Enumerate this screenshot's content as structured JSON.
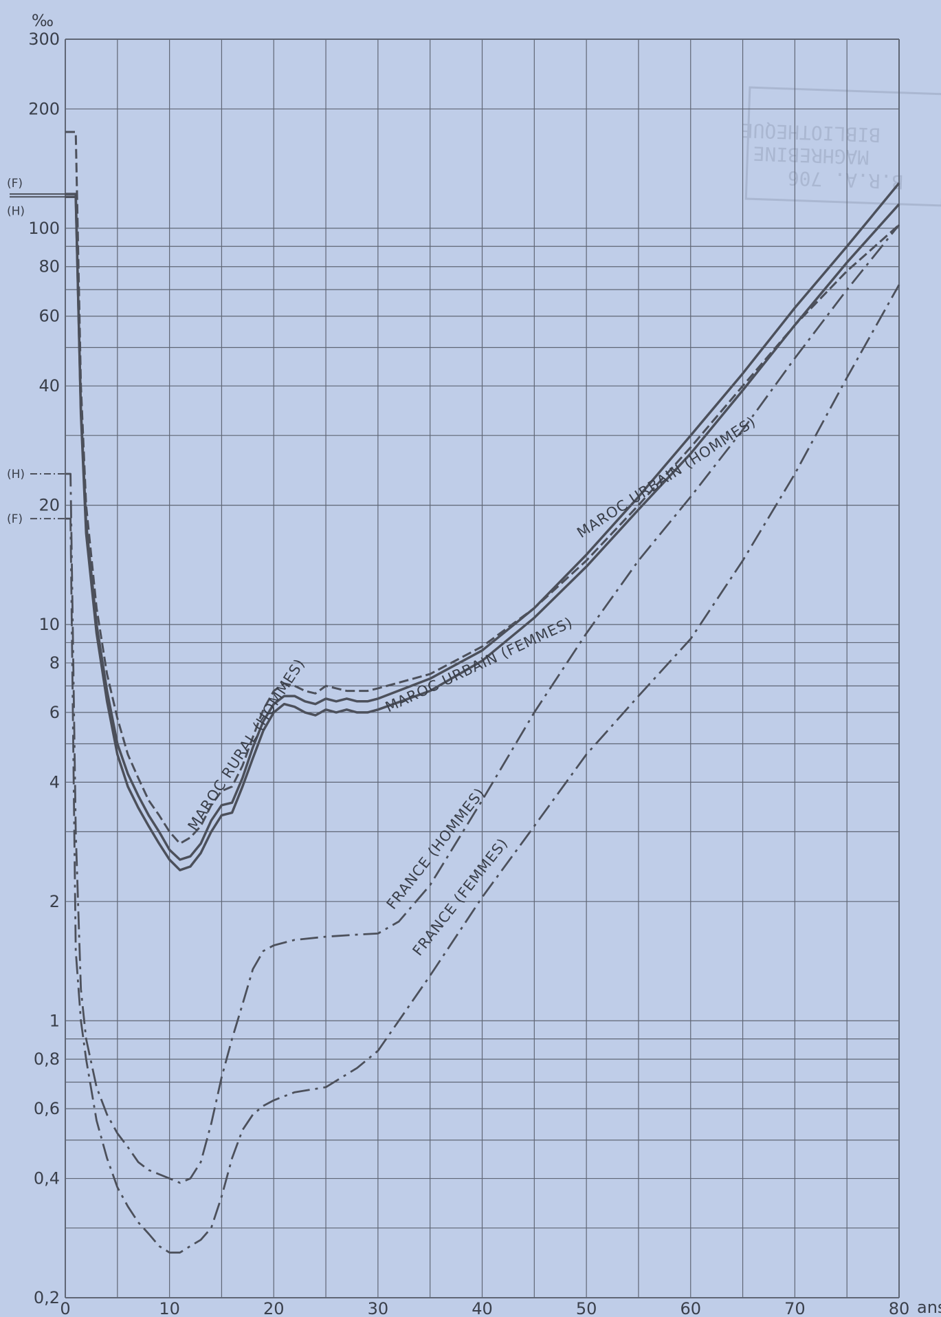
{
  "chart_data": {
    "type": "line",
    "y_unit": "‰",
    "x_unit": "ans",
    "y_scale": "log",
    "xlim": [
      0,
      80
    ],
    "ylim": [
      0.2,
      300
    ],
    "grid": true,
    "x_ticks": [
      0,
      10,
      20,
      30,
      40,
      50,
      60,
      70,
      80
    ],
    "x_tick_labels": [
      "0",
      "10",
      "20",
      "30",
      "40",
      "50",
      "60",
      "70",
      "80"
    ],
    "y_ticks": [
      0.2,
      0.4,
      0.6,
      0.8,
      1,
      2,
      4,
      6,
      8,
      10,
      20,
      40,
      60,
      80,
      100,
      200,
      300
    ],
    "y_tick_labels": [
      "0,2",
      "0,4",
      "0,6",
      "0,8",
      "1",
      "2",
      "4",
      "6",
      "8",
      "10",
      "20",
      "40",
      "60",
      "80",
      "100",
      "200",
      "300"
    ],
    "y_minor_grid": [
      0.3,
      0.5,
      0.7,
      0.9,
      3,
      5,
      7,
      9,
      30,
      50,
      70,
      90
    ],
    "infant_rates": {
      "maroc_hommes_label": "(H)",
      "maroc_hommes_value": 120,
      "maroc_femmes_label": "(F)",
      "maroc_femmes_value": 122,
      "france_hommes_label": "(H)",
      "france_hommes_value": 24,
      "france_femmes_label": "(F)",
      "france_femmes_value": 18.5
    },
    "series": [
      {
        "name": "MAROC RURAL (HOMMES)",
        "style": "dashed",
        "x": [
          0,
          1,
          1.5,
          2,
          3,
          4,
          5,
          6,
          7,
          8,
          9,
          10,
          11,
          12,
          13,
          14,
          15,
          16,
          17,
          18,
          19,
          20,
          21,
          22,
          23,
          24,
          25,
          26,
          27,
          28,
          29,
          30,
          35,
          40,
          45,
          50,
          55,
          60,
          65,
          70,
          75,
          80
        ],
        "values": [
          175,
          175,
          40,
          20,
          11,
          7.5,
          5.8,
          4.7,
          4.1,
          3.6,
          3.3,
          3.0,
          2.8,
          2.9,
          3.1,
          3.5,
          3.8,
          3.9,
          4.4,
          5.2,
          6.1,
          6.8,
          7.1,
          7.0,
          6.8,
          6.7,
          7.0,
          6.9,
          6.8,
          6.8,
          6.8,
          6.9,
          7.5,
          8.8,
          11.0,
          14.5,
          20.0,
          28.0,
          40.0,
          57.0,
          78.0,
          102.0
        ]
      },
      {
        "name": "MAROC URBAIN (HOMMES)",
        "style": "solid",
        "x": [
          0,
          1,
          1.5,
          2,
          3,
          4,
          5,
          6,
          7,
          8,
          9,
          10,
          11,
          12,
          13,
          14,
          15,
          16,
          17,
          18,
          19,
          20,
          21,
          22,
          23,
          24,
          25,
          26,
          27,
          28,
          29,
          30,
          35,
          40,
          45,
          50,
          55,
          60,
          65,
          70,
          75,
          80
        ],
        "values": [
          120,
          120,
          35,
          18,
          10,
          6.8,
          5.0,
          4.2,
          3.7,
          3.3,
          3.0,
          2.7,
          2.55,
          2.6,
          2.8,
          3.2,
          3.5,
          3.55,
          4.1,
          4.9,
          5.7,
          6.3,
          6.6,
          6.6,
          6.4,
          6.3,
          6.5,
          6.4,
          6.5,
          6.4,
          6.4,
          6.5,
          7.3,
          8.6,
          11.0,
          15.0,
          21.0,
          30.0,
          43.0,
          63.0,
          90.0,
          130.0
        ]
      },
      {
        "name": "MAROC URBAIN (FEMMES)",
        "style": "solid",
        "x": [
          0,
          1,
          1.5,
          2,
          3,
          4,
          5,
          6,
          7,
          8,
          9,
          10,
          11,
          12,
          13,
          14,
          15,
          16,
          17,
          18,
          19,
          20,
          21,
          22,
          23,
          24,
          25,
          26,
          27,
          28,
          29,
          30,
          35,
          40,
          45,
          50,
          55,
          60,
          65,
          70,
          75,
          80
        ],
        "values": [
          122,
          122,
          34,
          17,
          9.5,
          6.4,
          4.7,
          3.9,
          3.45,
          3.1,
          2.8,
          2.55,
          2.4,
          2.45,
          2.65,
          3.0,
          3.3,
          3.35,
          3.9,
          4.6,
          5.4,
          6.0,
          6.3,
          6.2,
          6.0,
          5.9,
          6.1,
          6.0,
          6.1,
          6.0,
          6.0,
          6.1,
          6.8,
          8.1,
          10.4,
          14.0,
          19.5,
          27.0,
          39.0,
          57.0,
          82.0,
          115.0
        ]
      },
      {
        "name": "FRANCE (HOMMES)",
        "style": "dash-dot",
        "x": [
          0,
          0.5,
          1,
          1.5,
          2,
          3,
          4,
          5,
          6,
          7,
          8,
          9,
          10,
          11,
          12,
          13,
          14,
          15,
          16,
          17,
          18,
          19,
          20,
          22,
          25,
          28,
          30,
          32,
          35,
          40,
          45,
          50,
          55,
          60,
          65,
          70,
          75,
          80
        ],
        "values": [
          24,
          24,
          3.0,
          1.2,
          0.9,
          0.68,
          0.58,
          0.52,
          0.48,
          0.44,
          0.42,
          0.41,
          0.4,
          0.39,
          0.4,
          0.44,
          0.55,
          0.72,
          0.9,
          1.1,
          1.35,
          1.5,
          1.55,
          1.6,
          1.63,
          1.65,
          1.66,
          1.78,
          2.2,
          3.6,
          6.0,
          9.5,
          14.5,
          21.0,
          31.0,
          47.0,
          70.0,
          102.0
        ]
      },
      {
        "name": "FRANCE (FEMMES)",
        "style": "dash-dot",
        "x": [
          0,
          0.5,
          1,
          1.5,
          2,
          3,
          4,
          5,
          6,
          7,
          8,
          9,
          10,
          11,
          12,
          13,
          14,
          15,
          16,
          17,
          18,
          19,
          20,
          22,
          25,
          28,
          30,
          35,
          40,
          45,
          50,
          55,
          60,
          65,
          70,
          75,
          80
        ],
        "values": [
          18.5,
          18.5,
          1.5,
          1.0,
          0.8,
          0.56,
          0.45,
          0.38,
          0.34,
          0.31,
          0.29,
          0.27,
          0.26,
          0.26,
          0.27,
          0.28,
          0.3,
          0.36,
          0.45,
          0.53,
          0.58,
          0.61,
          0.63,
          0.66,
          0.68,
          0.76,
          0.84,
          1.3,
          2.05,
          3.1,
          4.7,
          6.6,
          9.2,
          14.5,
          24.0,
          42.0,
          72.0
        ]
      }
    ],
    "curve_labels": [
      {
        "text": "MAROC RURAL (HOMMES)",
        "x": 12.5,
        "y": 3.0,
        "angle": -57
      },
      {
        "text": "MAROC URBAIN (HOMMES)",
        "x": 49.5,
        "y": 16.5,
        "angle": -33
      },
      {
        "text": "MAROC URBAIN (FEMMES)",
        "x": 31,
        "y": 6.0,
        "angle": -25
      },
      {
        "text": "FRANCE (HOMMES)",
        "x": 31.5,
        "y": 1.9,
        "angle": -52
      },
      {
        "text": "FRANCE (FEMMES)",
        "x": 34,
        "y": 1.45,
        "angle": -52
      }
    ],
    "stamp": {
      "line1": "BIBLIOTHEQUE",
      "line2": "MAGHREBINE",
      "line3": "B.R.A. 706"
    }
  },
  "colors": {
    "background": "#bfcde8",
    "grid": "#5f6675",
    "ink": "#4c505b",
    "text": "#3a3f4a"
  }
}
